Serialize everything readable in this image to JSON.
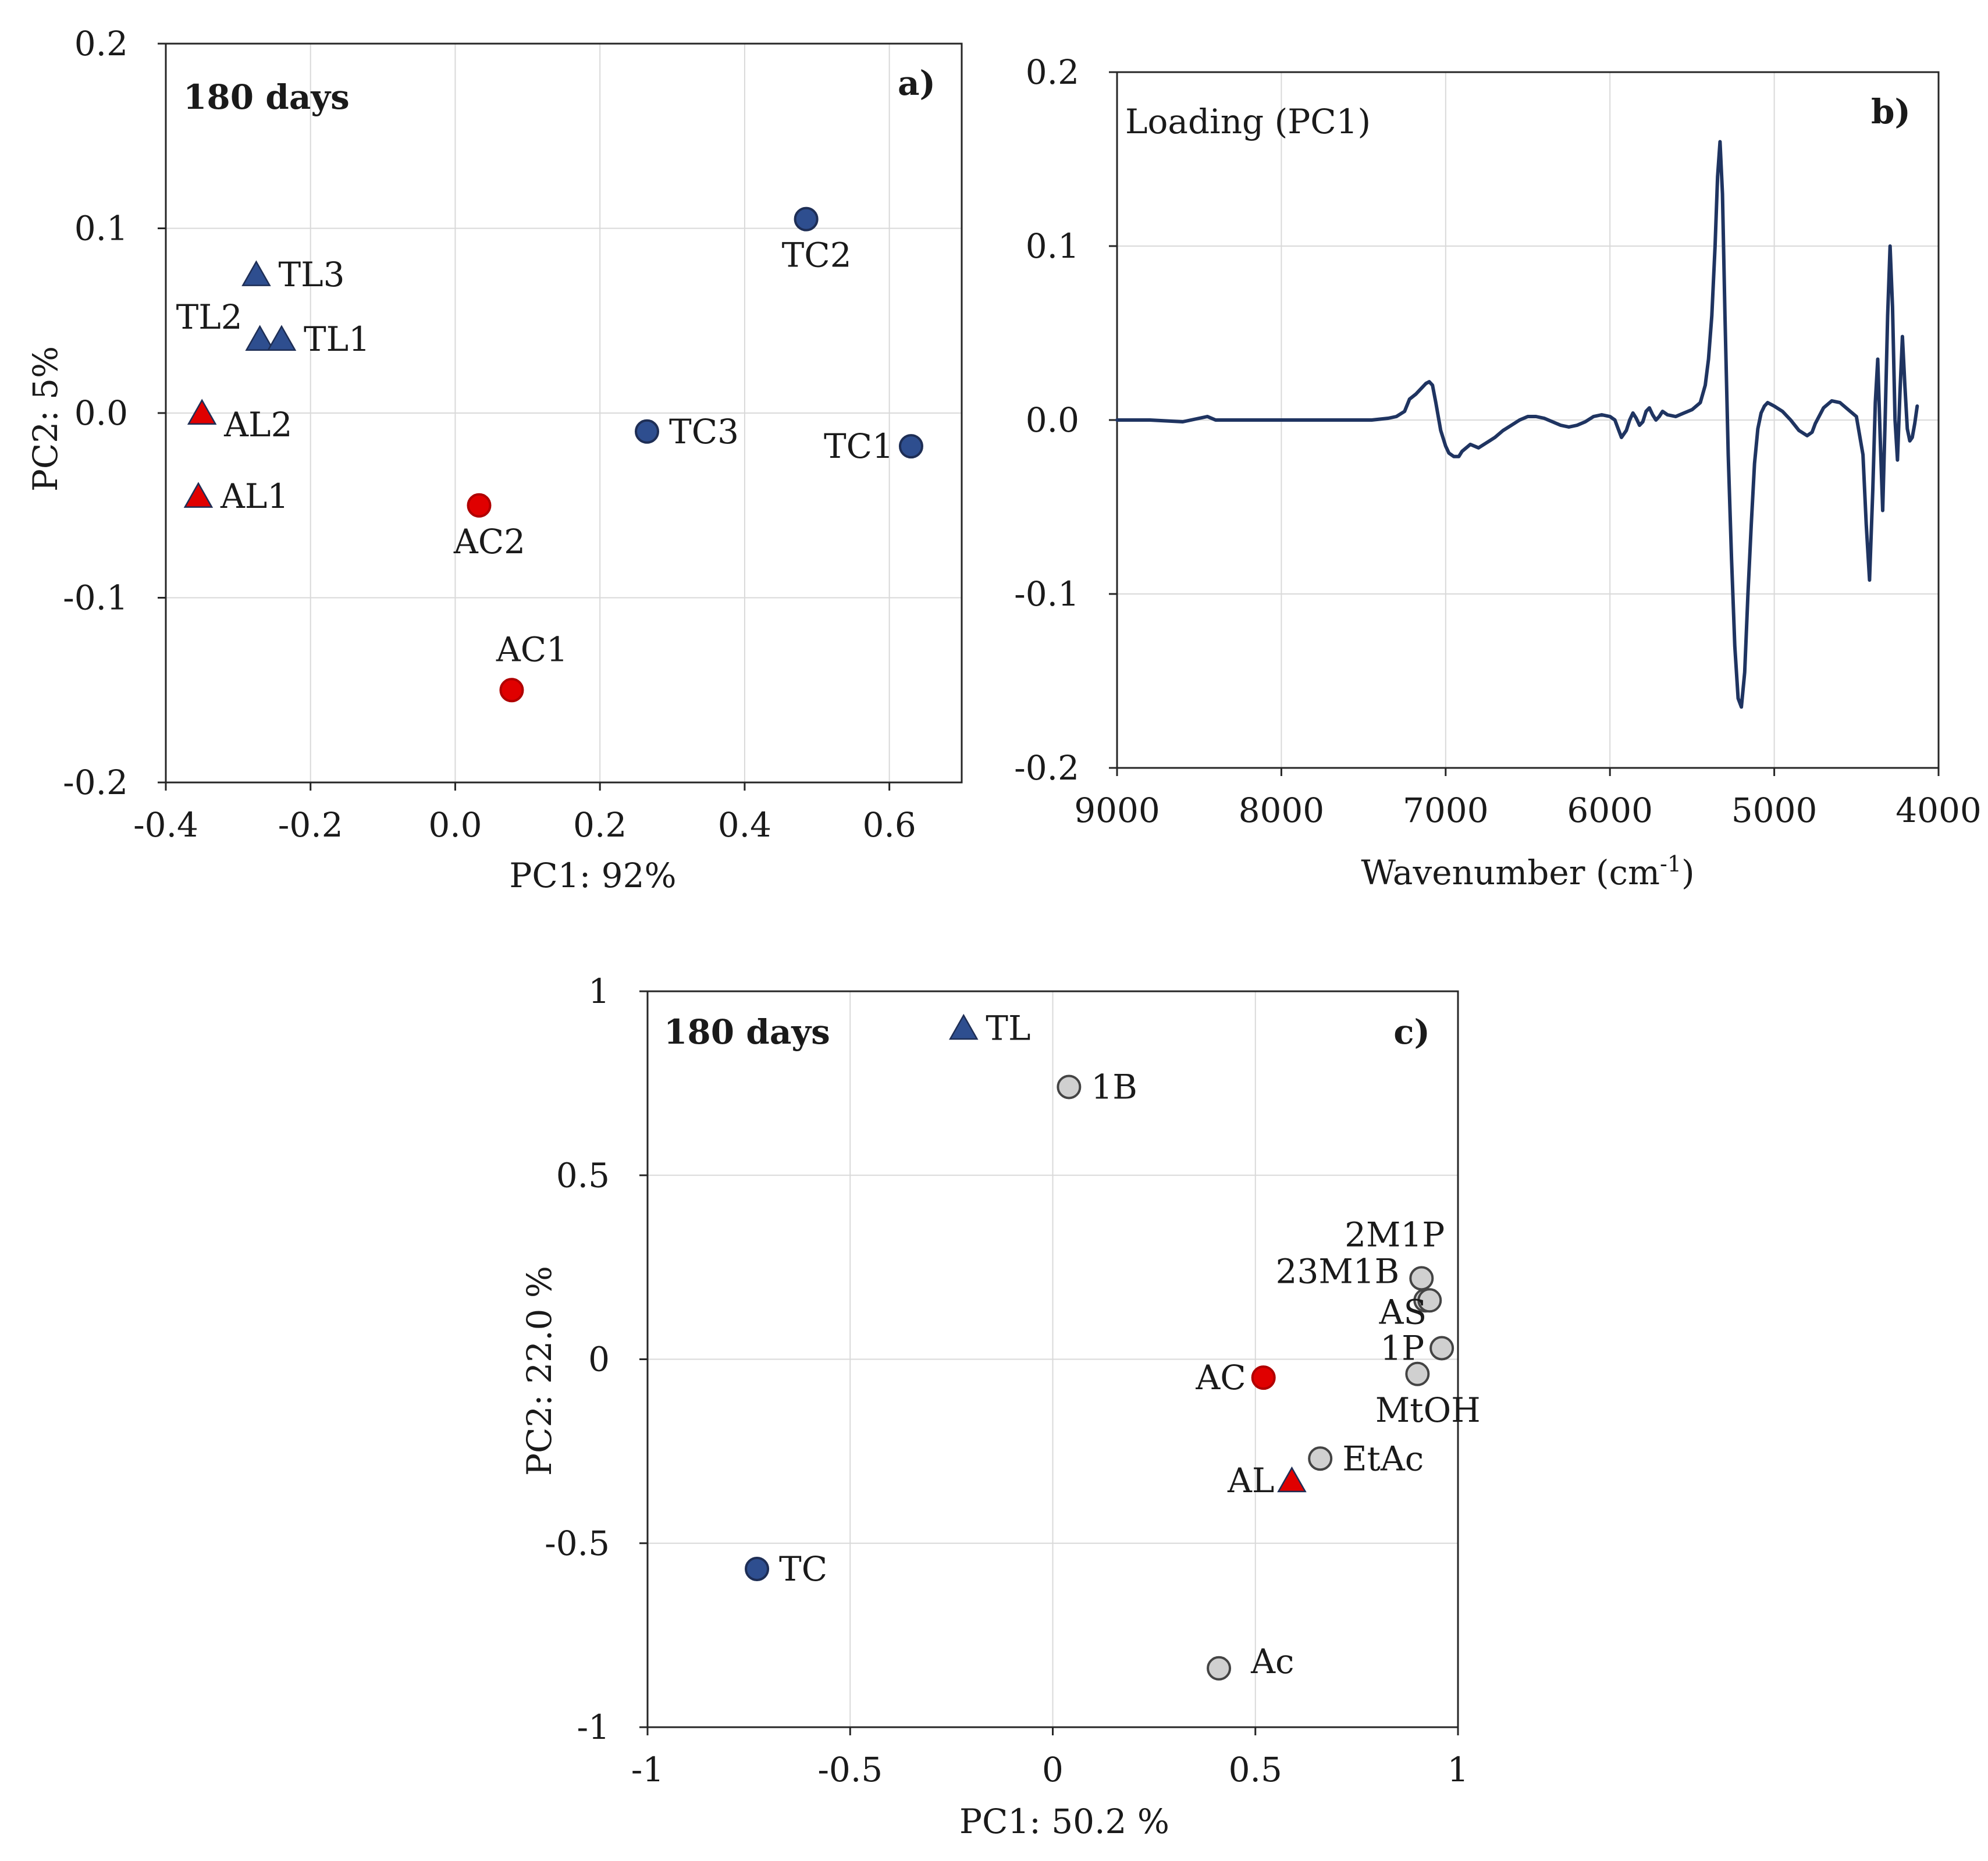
{
  "colors": {
    "blue": "#2e4e8f",
    "red": "#e00000",
    "grey": "#d0d0d0",
    "line": "#1f3461"
  },
  "chart_data": [
    {
      "id": "a",
      "type": "scatter",
      "panel_label": "a)",
      "title": "180 days",
      "xlabel": "PC1: 92%",
      "ylabel": "PC2: 5%",
      "xlim": [
        -0.4,
        0.7
      ],
      "ylim": [
        -0.2,
        0.2
      ],
      "xticks": [
        -0.4,
        -0.2,
        0.0,
        0.2,
        0.4,
        0.6
      ],
      "xtick_labels": [
        "-0.4",
        "-0.2",
        "0.0",
        "0.2",
        "0.4",
        "0.6"
      ],
      "yticks": [
        -0.2,
        -0.1,
        0.0,
        0.1,
        0.2
      ],
      "ytick_labels": [
        "-0.2",
        "-0.1",
        "0.0",
        "0.1",
        "0.2"
      ],
      "grid": true,
      "points": [
        {
          "label": "TL3",
          "x": -0.275,
          "y": 0.075,
          "marker": "triangle",
          "color": "blue",
          "label_pos": "right"
        },
        {
          "label": "TL2",
          "x": -0.27,
          "y": 0.04,
          "marker": "triangle",
          "color": "blue",
          "label_pos": "upper-left"
        },
        {
          "label": "TL1",
          "x": -0.24,
          "y": 0.04,
          "marker": "triangle",
          "color": "blue",
          "label_pos": "right"
        },
        {
          "label": "AL2",
          "x": -0.35,
          "y": 0.0,
          "marker": "triangle",
          "color": "red",
          "label_pos": "lower-right"
        },
        {
          "label": "AL1",
          "x": -0.355,
          "y": -0.045,
          "marker": "triangle",
          "color": "red",
          "label_pos": "right"
        },
        {
          "label": "AC2",
          "x": 0.033,
          "y": -0.05,
          "marker": "circle",
          "color": "red",
          "label_pos": "below"
        },
        {
          "label": "AC1",
          "x": 0.078,
          "y": -0.15,
          "marker": "circle",
          "color": "red",
          "label_pos": "above"
        },
        {
          "label": "TC3",
          "x": 0.265,
          "y": -0.01,
          "marker": "circle",
          "color": "blue",
          "label_pos": "right"
        },
        {
          "label": "TC2",
          "x": 0.485,
          "y": 0.105,
          "marker": "circle",
          "color": "blue",
          "label_pos": "below"
        },
        {
          "label": "TC1",
          "x": 0.63,
          "y": -0.018,
          "marker": "circle",
          "color": "blue",
          "label_pos": "left"
        }
      ]
    },
    {
      "id": "b",
      "type": "line",
      "panel_label": "b)",
      "annotation": "Loading (PC1)",
      "xlabel_main": "Wavenumber (cm",
      "xlabel_sup": "-1",
      "xlabel_end": ")",
      "ylabel": "",
      "xlim": [
        9000,
        4000
      ],
      "ylim": [
        -0.2,
        0.2
      ],
      "xticks": [
        9000,
        8000,
        7000,
        6000,
        5000,
        4000
      ],
      "xtick_labels": [
        "9000",
        "8000",
        "7000",
        "6000",
        "5000",
        "4000"
      ],
      "yticks": [
        -0.2,
        -0.1,
        0.0,
        0.1,
        0.2
      ],
      "ytick_labels": [
        "-0.2",
        "-0.1",
        "0.0",
        "0.1",
        "0.2"
      ],
      "grid": true,
      "series": [
        {
          "name": "Loading (PC1)",
          "x": [
            9000,
            8800,
            8600,
            8500,
            8450,
            8400,
            8300,
            8000,
            7700,
            7450,
            7350,
            7300,
            7250,
            7220,
            7180,
            7150,
            7120,
            7100,
            7080,
            7060,
            7030,
            7000,
            6980,
            6950,
            6920,
            6900,
            6850,
            6800,
            6750,
            6700,
            6650,
            6600,
            6550,
            6500,
            6450,
            6400,
            6350,
            6300,
            6250,
            6200,
            6150,
            6100,
            6050,
            6000,
            5970,
            5950,
            5930,
            5900,
            5880,
            5860,
            5840,
            5820,
            5800,
            5780,
            5760,
            5740,
            5720,
            5700,
            5680,
            5650,
            5600,
            5550,
            5500,
            5450,
            5420,
            5400,
            5380,
            5360,
            5345,
            5330,
            5315,
            5300,
            5280,
            5260,
            5240,
            5220,
            5200,
            5180,
            5160,
            5140,
            5120,
            5100,
            5080,
            5060,
            5040,
            5000,
            4950,
            4900,
            4850,
            4800,
            4770,
            4750,
            4700,
            4650,
            4600,
            4550,
            4500,
            4460,
            4440,
            4420,
            4400,
            4385,
            4370,
            4355,
            4340,
            4325,
            4310,
            4295,
            4280,
            4265,
            4250,
            4235,
            4220,
            4205,
            4190,
            4175,
            4160,
            4145,
            4130
          ],
          "y": [
            0.0,
            0.0,
            -0.001,
            0.001,
            0.002,
            0.0,
            0.0,
            0.0,
            0.0,
            0.0,
            0.001,
            0.002,
            0.005,
            0.012,
            0.015,
            0.018,
            0.021,
            0.022,
            0.02,
            0.01,
            -0.006,
            -0.015,
            -0.019,
            -0.021,
            -0.021,
            -0.018,
            -0.014,
            -0.016,
            -0.013,
            -0.01,
            -0.006,
            -0.003,
            0.0,
            0.002,
            0.002,
            0.001,
            -0.001,
            -0.003,
            -0.004,
            -0.003,
            -0.001,
            0.002,
            0.003,
            0.002,
            0.0,
            -0.005,
            -0.01,
            -0.006,
            0.0,
            0.004,
            0.001,
            -0.003,
            -0.001,
            0.005,
            0.007,
            0.003,
            0.0,
            0.002,
            0.005,
            0.003,
            0.002,
            0.004,
            0.006,
            0.01,
            0.02,
            0.035,
            0.06,
            0.1,
            0.14,
            0.16,
            0.13,
            0.06,
            -0.02,
            -0.08,
            -0.13,
            -0.16,
            -0.165,
            -0.145,
            -0.1,
            -0.06,
            -0.025,
            -0.005,
            0.004,
            0.008,
            0.01,
            0.008,
            0.005,
            0.0,
            -0.006,
            -0.009,
            -0.007,
            -0.002,
            0.007,
            0.011,
            0.01,
            0.006,
            0.002,
            -0.02,
            -0.06,
            -0.092,
            -0.04,
            0.01,
            0.035,
            -0.01,
            -0.052,
            0.0,
            0.06,
            0.1,
            0.065,
            0.0,
            -0.023,
            0.015,
            0.048,
            0.02,
            -0.005,
            -0.012,
            -0.01,
            -0.002,
            0.008
          ]
        }
      ]
    },
    {
      "id": "c",
      "type": "scatter",
      "panel_label": "c)",
      "title": "180 days",
      "xlabel": "PC1: 50.2 %",
      "ylabel": "PC2: 22.0 %",
      "xlim": [
        -1,
        1
      ],
      "ylim": [
        -1,
        1
      ],
      "xticks": [
        -1,
        -0.5,
        0,
        0.5,
        1
      ],
      "xtick_labels": [
        "-1",
        "-0.5",
        "0",
        "0.5",
        "1"
      ],
      "yticks": [
        -1,
        -0.5,
        0,
        0.5,
        1
      ],
      "ytick_labels": [
        "-1",
        "-0.5",
        "0",
        "0.5",
        "1"
      ],
      "grid": true,
      "points": [
        {
          "label": "TL",
          "x": -0.22,
          "y": 0.9,
          "marker": "triangle",
          "color": "blue",
          "label_pos": "right"
        },
        {
          "label": "1B",
          "x": 0.04,
          "y": 0.74,
          "marker": "circle",
          "color": "grey",
          "label_pos": "right"
        },
        {
          "label": "2M1P",
          "x": 0.91,
          "y": 0.22,
          "marker": "circle",
          "color": "grey",
          "label_pos": "above-left"
        },
        {
          "label": "23M1B",
          "x": 0.92,
          "y": 0.16,
          "marker": "circle",
          "color": "grey",
          "label_pos": "upper-left-far"
        },
        {
          "label": "AS",
          "x": 0.93,
          "y": 0.16,
          "marker": "circle",
          "color": "grey",
          "label_pos": "below-left"
        },
        {
          "label": "1P",
          "x": 0.96,
          "y": 0.03,
          "marker": "circle",
          "color": "grey",
          "label_pos": "left"
        },
        {
          "label": "MtOH",
          "x": 0.9,
          "y": -0.04,
          "marker": "circle",
          "color": "grey",
          "label_pos": "below"
        },
        {
          "label": "AC",
          "x": 0.52,
          "y": -0.05,
          "marker": "circle",
          "color": "red",
          "label_pos": "left"
        },
        {
          "label": "EtAc",
          "x": 0.66,
          "y": -0.27,
          "marker": "circle",
          "color": "grey",
          "label_pos": "right"
        },
        {
          "label": "AL",
          "x": 0.59,
          "y": -0.33,
          "marker": "triangle",
          "color": "red",
          "label_pos": "left"
        },
        {
          "label": "TC",
          "x": -0.73,
          "y": -0.57,
          "marker": "circle",
          "color": "blue",
          "label_pos": "right"
        },
        {
          "label": "Ac",
          "x": 0.41,
          "y": -0.84,
          "marker": "circle",
          "color": "grey",
          "label_pos": "upper-right"
        }
      ]
    }
  ]
}
